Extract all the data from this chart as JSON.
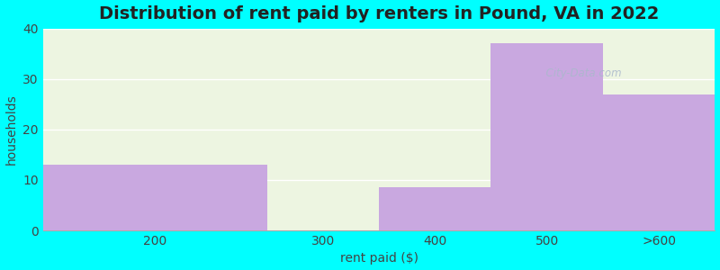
{
  "title": "Distribution of rent paid by renters in Pound, VA in 2022",
  "categories": [
    "200",
    "300",
    "400",
    "500",
    ">600"
  ],
  "values": [
    13,
    0,
    8.5,
    37,
    27
  ],
  "bar_color": "#c9a8e0",
  "background_color": "#00ffff",
  "plot_bg_color": "#edf5e1",
  "xlabel": "rent paid ($)",
  "ylabel": "households",
  "ylim": [
    0,
    40
  ],
  "yticks": [
    0,
    10,
    20,
    30,
    40
  ],
  "title_fontsize": 14,
  "axis_label_fontsize": 10,
  "tick_fontsize": 10,
  "watermark_text": "City-Data.com",
  "bar_edges": [
    0,
    2,
    3,
    4,
    5,
    6
  ],
  "last_bar_bgcolor": "#f0f0f5"
}
